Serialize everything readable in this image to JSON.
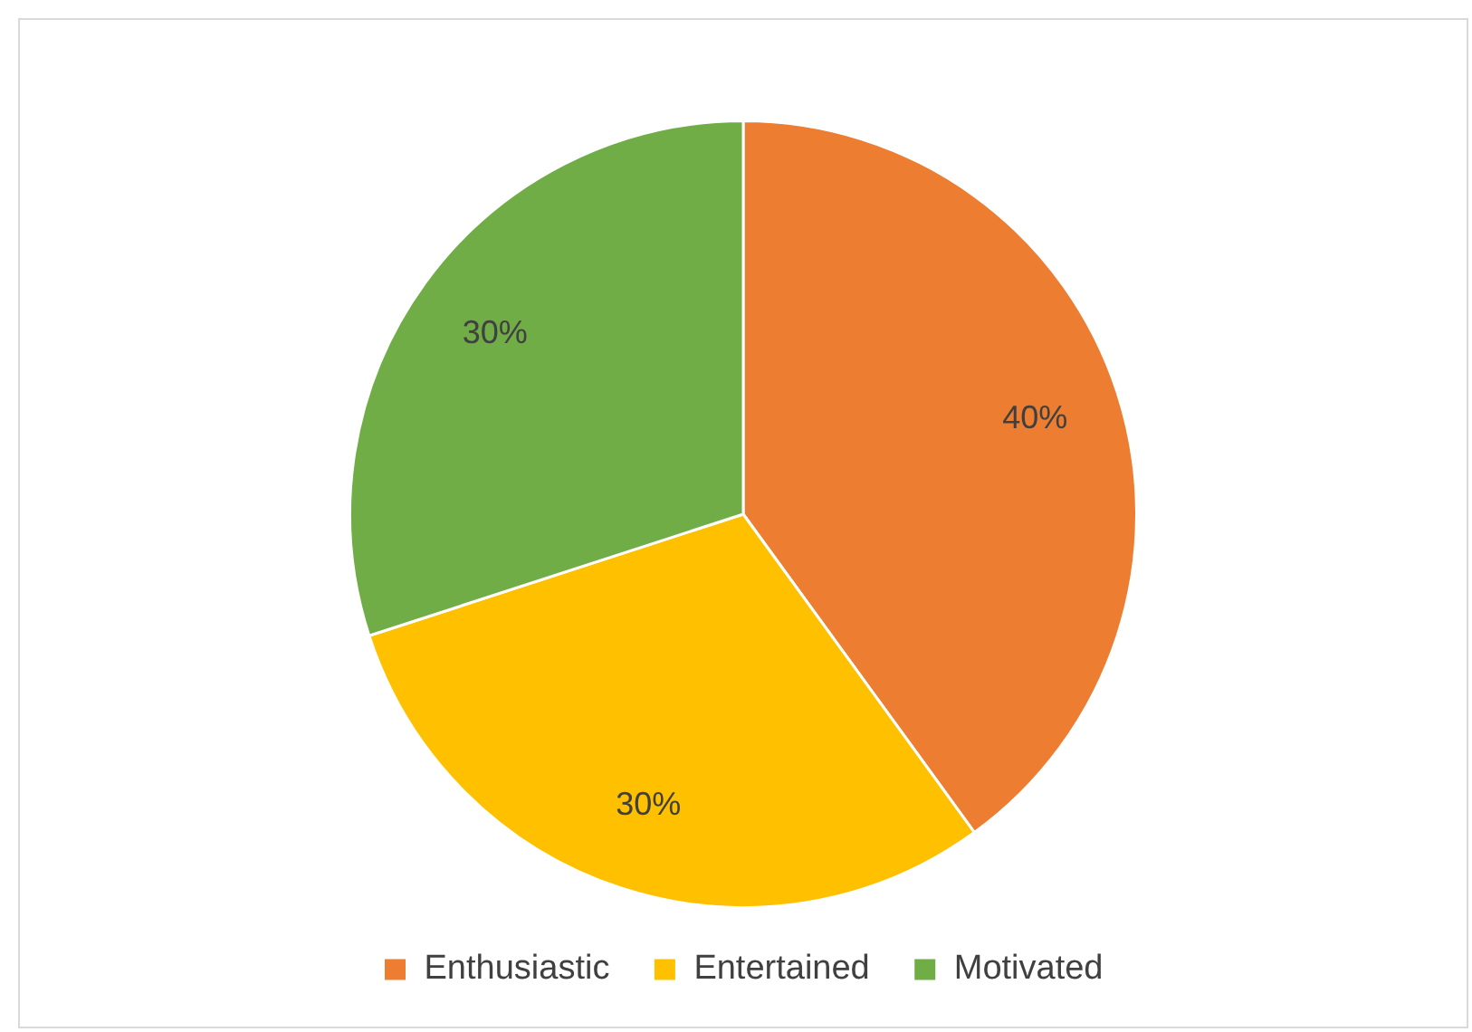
{
  "chart_data": {
    "type": "pie",
    "categories": [
      "Enthusiastic",
      "Entertained",
      "Motivated"
    ],
    "values": [
      40,
      30,
      30
    ],
    "colors": [
      "#ed7d31",
      "#ffc000",
      "#70ad47"
    ],
    "value_labels": [
      "40%",
      "30%",
      "30%"
    ],
    "legend": "bottom"
  }
}
